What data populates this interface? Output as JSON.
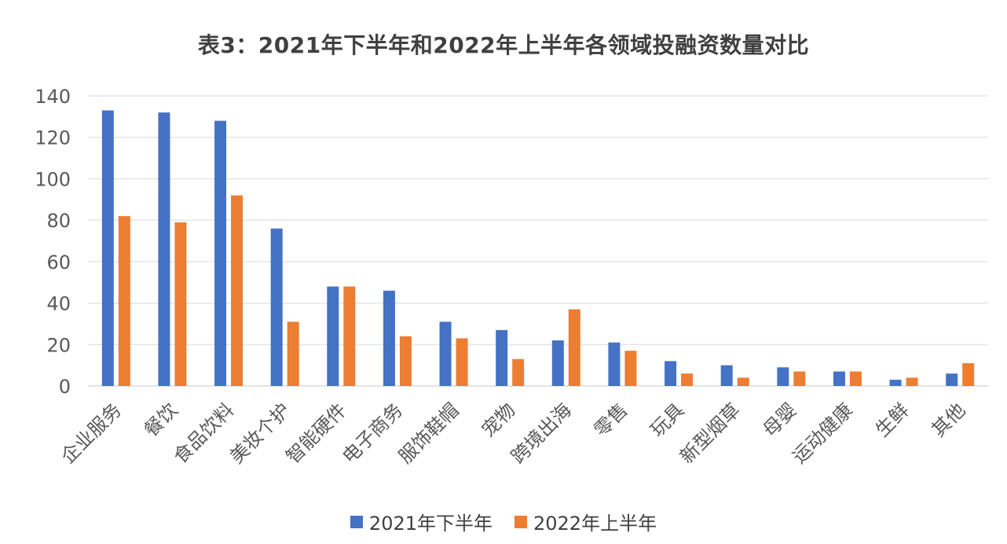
{
  "chart_data": {
    "type": "bar",
    "title": "表3：2021年下半年和2022年上半年各领域投融资数量对比",
    "xlabel": "",
    "ylabel": "",
    "ylim": [
      0,
      140
    ],
    "yticks": [
      0,
      20,
      40,
      60,
      80,
      100,
      120,
      140
    ],
    "grid": true,
    "legend_position": "bottom",
    "categories": [
      "企业服务",
      "餐饮",
      "食品饮料",
      "美妆个护",
      "智能硬件",
      "电子商务",
      "服饰鞋帽",
      "宠物",
      "跨境出海",
      "零售",
      "玩具",
      "新型烟草",
      "母婴",
      "运动健康",
      "生鲜",
      "其他"
    ],
    "series": [
      {
        "name": "2021年下半年",
        "color": "#4472C4",
        "values": [
          133,
          132,
          128,
          76,
          48,
          46,
          31,
          27,
          22,
          21,
          12,
          10,
          9,
          7,
          3,
          6
        ]
      },
      {
        "name": "2022年上半年",
        "color": "#ED7D31",
        "values": [
          82,
          79,
          92,
          31,
          48,
          24,
          23,
          13,
          37,
          17,
          6,
          4,
          7,
          7,
          4,
          11
        ]
      }
    ]
  }
}
